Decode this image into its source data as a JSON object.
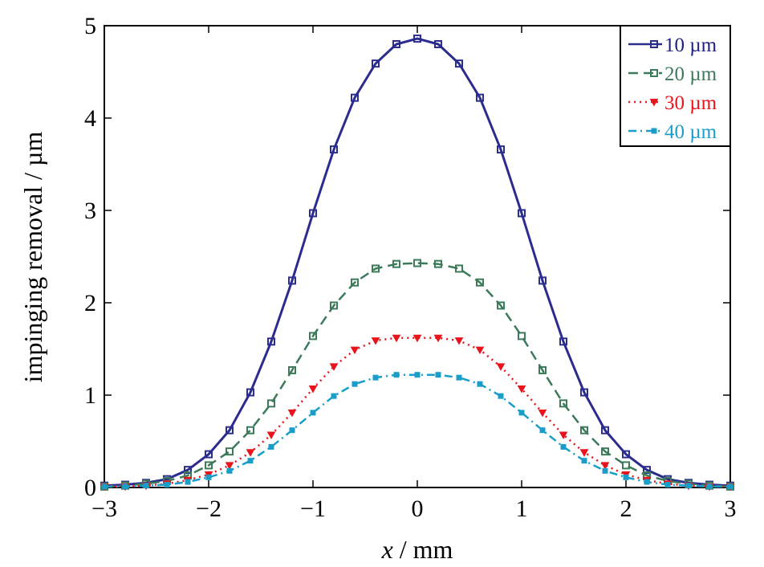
{
  "chart_data": {
    "type": "line",
    "title": "",
    "xlabel_var": "x",
    "xlabel_unit": " / mm",
    "ylabel": "impinging removal / µm",
    "xlim": [
      -3,
      3
    ],
    "ylim": [
      0,
      5
    ],
    "x_ticks": [
      -3,
      -2,
      -1,
      0,
      1,
      2,
      3
    ],
    "y_ticks": [
      0,
      1,
      2,
      3,
      4,
      5
    ],
    "x_tick_labels": [
      "−3",
      "−2",
      "−1",
      "0",
      "1",
      "2",
      "3"
    ],
    "y_tick_labels": [
      "0",
      "1",
      "2",
      "3",
      "4",
      "5"
    ],
    "x": [
      -3.0,
      -2.8,
      -2.6,
      -2.4,
      -2.2,
      -2.0,
      -1.8,
      -1.6,
      -1.4,
      -1.2,
      -1.0,
      -0.8,
      -0.6,
      -0.4,
      -0.2,
      0.0,
      0.2,
      0.4,
      0.6,
      0.8,
      1.0,
      1.2,
      1.4,
      1.6,
      1.8,
      2.0,
      2.2,
      2.4,
      2.6,
      2.8,
      3.0
    ],
    "series": [
      {
        "name": "10 µm",
        "color": "#2b2d8e",
        "marker": "square",
        "line": "solid",
        "values": [
          0.02,
          0.03,
          0.05,
          0.09,
          0.19,
          0.36,
          0.62,
          1.03,
          1.58,
          2.24,
          2.97,
          3.66,
          4.22,
          4.59,
          4.8,
          4.86,
          4.8,
          4.59,
          4.22,
          3.66,
          2.97,
          2.24,
          1.58,
          1.03,
          0.62,
          0.36,
          0.19,
          0.09,
          0.05,
          0.03,
          0.02
        ]
      },
      {
        "name": "20 µm",
        "color": "#3c7a5a",
        "marker": "square",
        "line": "dashed",
        "values": [
          0.01,
          0.02,
          0.04,
          0.07,
          0.13,
          0.24,
          0.39,
          0.62,
          0.91,
          1.27,
          1.64,
          1.97,
          2.22,
          2.37,
          2.42,
          2.43,
          2.42,
          2.37,
          2.22,
          1.97,
          1.64,
          1.27,
          0.91,
          0.62,
          0.39,
          0.24,
          0.13,
          0.07,
          0.04,
          0.02,
          0.01
        ]
      },
      {
        "name": "30 µm",
        "color": "#e8141c",
        "marker": "triangle-down",
        "line": "dotted",
        "values": [
          0.01,
          0.01,
          0.02,
          0.04,
          0.08,
          0.14,
          0.24,
          0.38,
          0.57,
          0.81,
          1.07,
          1.31,
          1.49,
          1.59,
          1.62,
          1.62,
          1.62,
          1.59,
          1.49,
          1.31,
          1.07,
          0.81,
          0.57,
          0.38,
          0.24,
          0.14,
          0.08,
          0.04,
          0.02,
          0.01,
          0.01
        ]
      },
      {
        "name": "40 µm",
        "color": "#1a9ec9",
        "marker": "square",
        "line": "dashdot",
        "values": [
          0.01,
          0.01,
          0.02,
          0.03,
          0.06,
          0.11,
          0.18,
          0.29,
          0.44,
          0.62,
          0.81,
          0.99,
          1.12,
          1.19,
          1.22,
          1.22,
          1.22,
          1.19,
          1.12,
          0.99,
          0.81,
          0.62,
          0.44,
          0.29,
          0.18,
          0.11,
          0.06,
          0.03,
          0.02,
          0.01,
          0.01
        ]
      }
    ],
    "legend_position": "top-right",
    "grid": false
  }
}
